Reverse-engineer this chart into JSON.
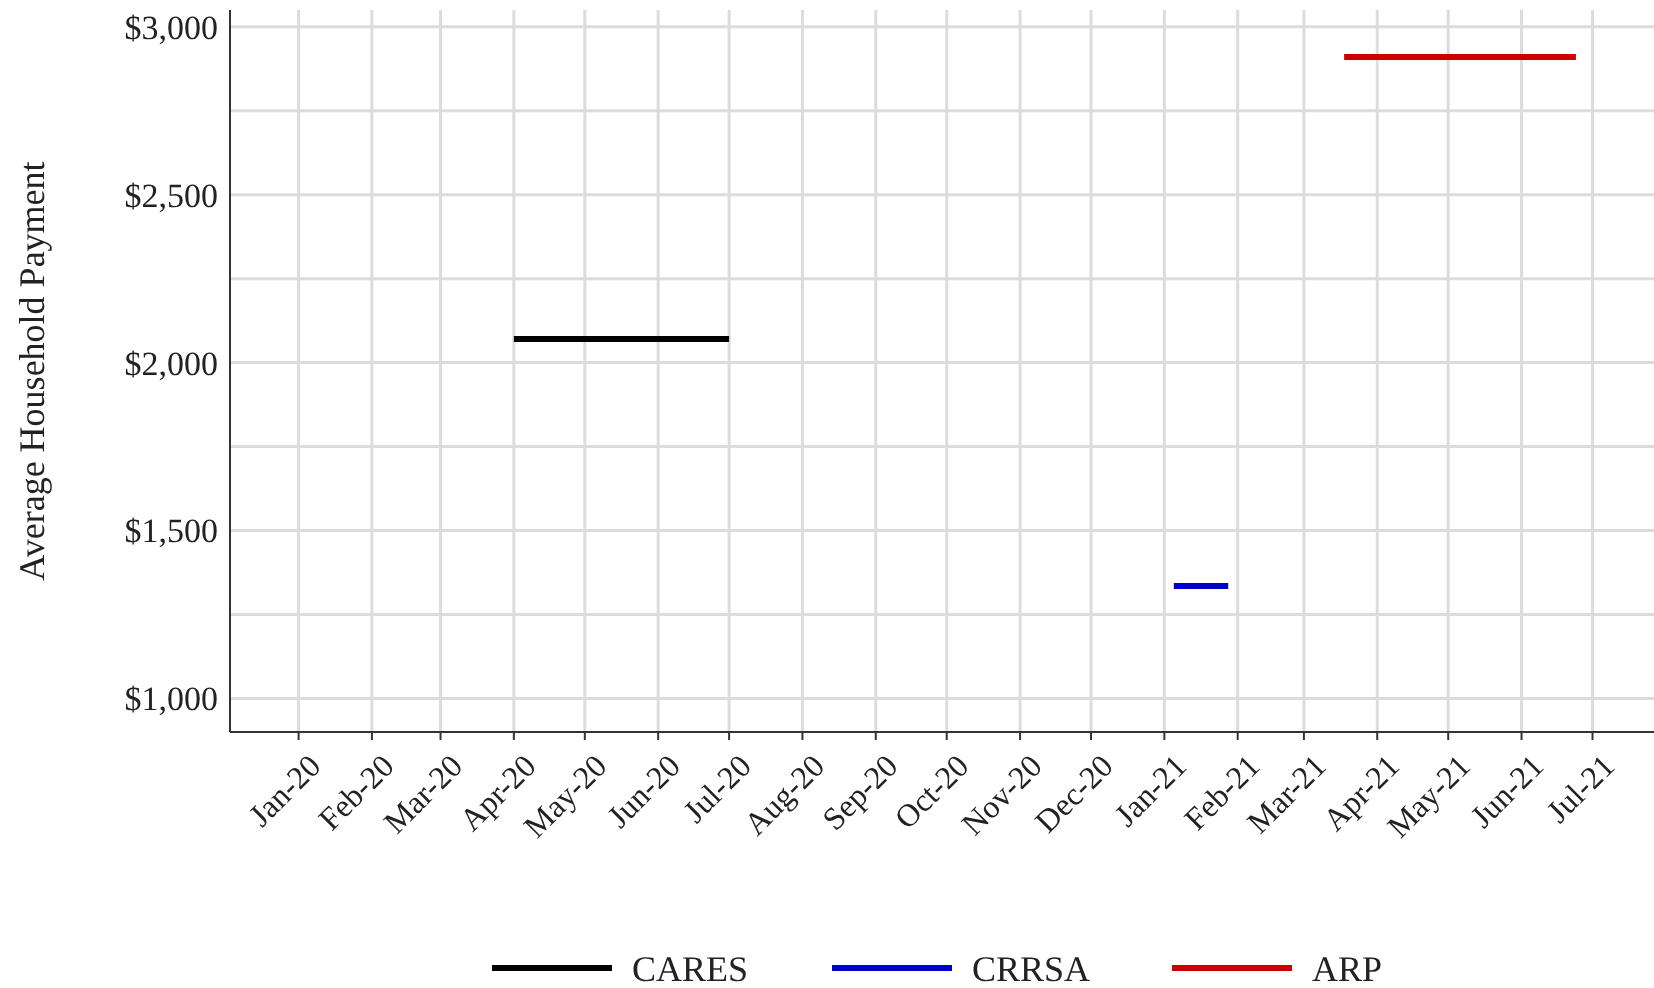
{
  "chart_data": {
    "type": "line",
    "ylabel": "Average Household Payment",
    "xlim": [
      "2019-12-03",
      "2021-07-27"
    ],
    "xticks": [
      {
        "value": "2020-01",
        "label": "Jan-20"
      },
      {
        "value": "2020-02",
        "label": "Feb-20"
      },
      {
        "value": "2020-03",
        "label": "Mar-20"
      },
      {
        "value": "2020-04",
        "label": "Apr-20"
      },
      {
        "value": "2020-05",
        "label": "May-20"
      },
      {
        "value": "2020-06",
        "label": "Jun-20"
      },
      {
        "value": "2020-07",
        "label": "Jul-20"
      },
      {
        "value": "2020-08",
        "label": "Aug-20"
      },
      {
        "value": "2020-09",
        "label": "Sep-20"
      },
      {
        "value": "2020-10",
        "label": "Oct-20"
      },
      {
        "value": "2020-11",
        "label": "Nov-20"
      },
      {
        "value": "2020-12",
        "label": "Dec-20"
      },
      {
        "value": "2021-01",
        "label": "Jan-21"
      },
      {
        "value": "2021-02",
        "label": "Feb-21"
      },
      {
        "value": "2021-03",
        "label": "Mar-21"
      },
      {
        "value": "2021-04",
        "label": "Apr-21"
      },
      {
        "value": "2021-05",
        "label": "May-21"
      },
      {
        "value": "2021-06",
        "label": "Jun-21"
      },
      {
        "value": "2021-07",
        "label": "Jul-21"
      }
    ],
    "ylim": [
      900,
      3050
    ],
    "yticks": [
      {
        "value": 1000,
        "label": "$1,000"
      },
      {
        "value": 1250,
        "label": null
      },
      {
        "value": 1500,
        "label": "$1,500"
      },
      {
        "value": 1750,
        "label": null
      },
      {
        "value": 2000,
        "label": "$2,000"
      },
      {
        "value": 2250,
        "label": null
      },
      {
        "value": 2500,
        "label": "$2,500"
      },
      {
        "value": 2750,
        "label": null
      },
      {
        "value": 3000,
        "label": "$3,000"
      }
    ],
    "grid": true,
    "legend": "bottom",
    "marker": "none",
    "line_style": "solid",
    "series": [
      {
        "name": "CARES",
        "color": "#000000",
        "x": [
          "2020-04-01",
          "2020-07-01"
        ],
        "values": [
          2070,
          2070
        ]
      },
      {
        "name": "CRRSA",
        "color": "#0000cc",
        "x": [
          "2021-01-05",
          "2021-01-28"
        ],
        "values": [
          1335,
          1335
        ]
      },
      {
        "name": "ARP",
        "color": "#cc0000",
        "x": [
          "2021-03-18",
          "2021-06-24"
        ],
        "values": [
          2910,
          2910
        ]
      }
    ]
  }
}
